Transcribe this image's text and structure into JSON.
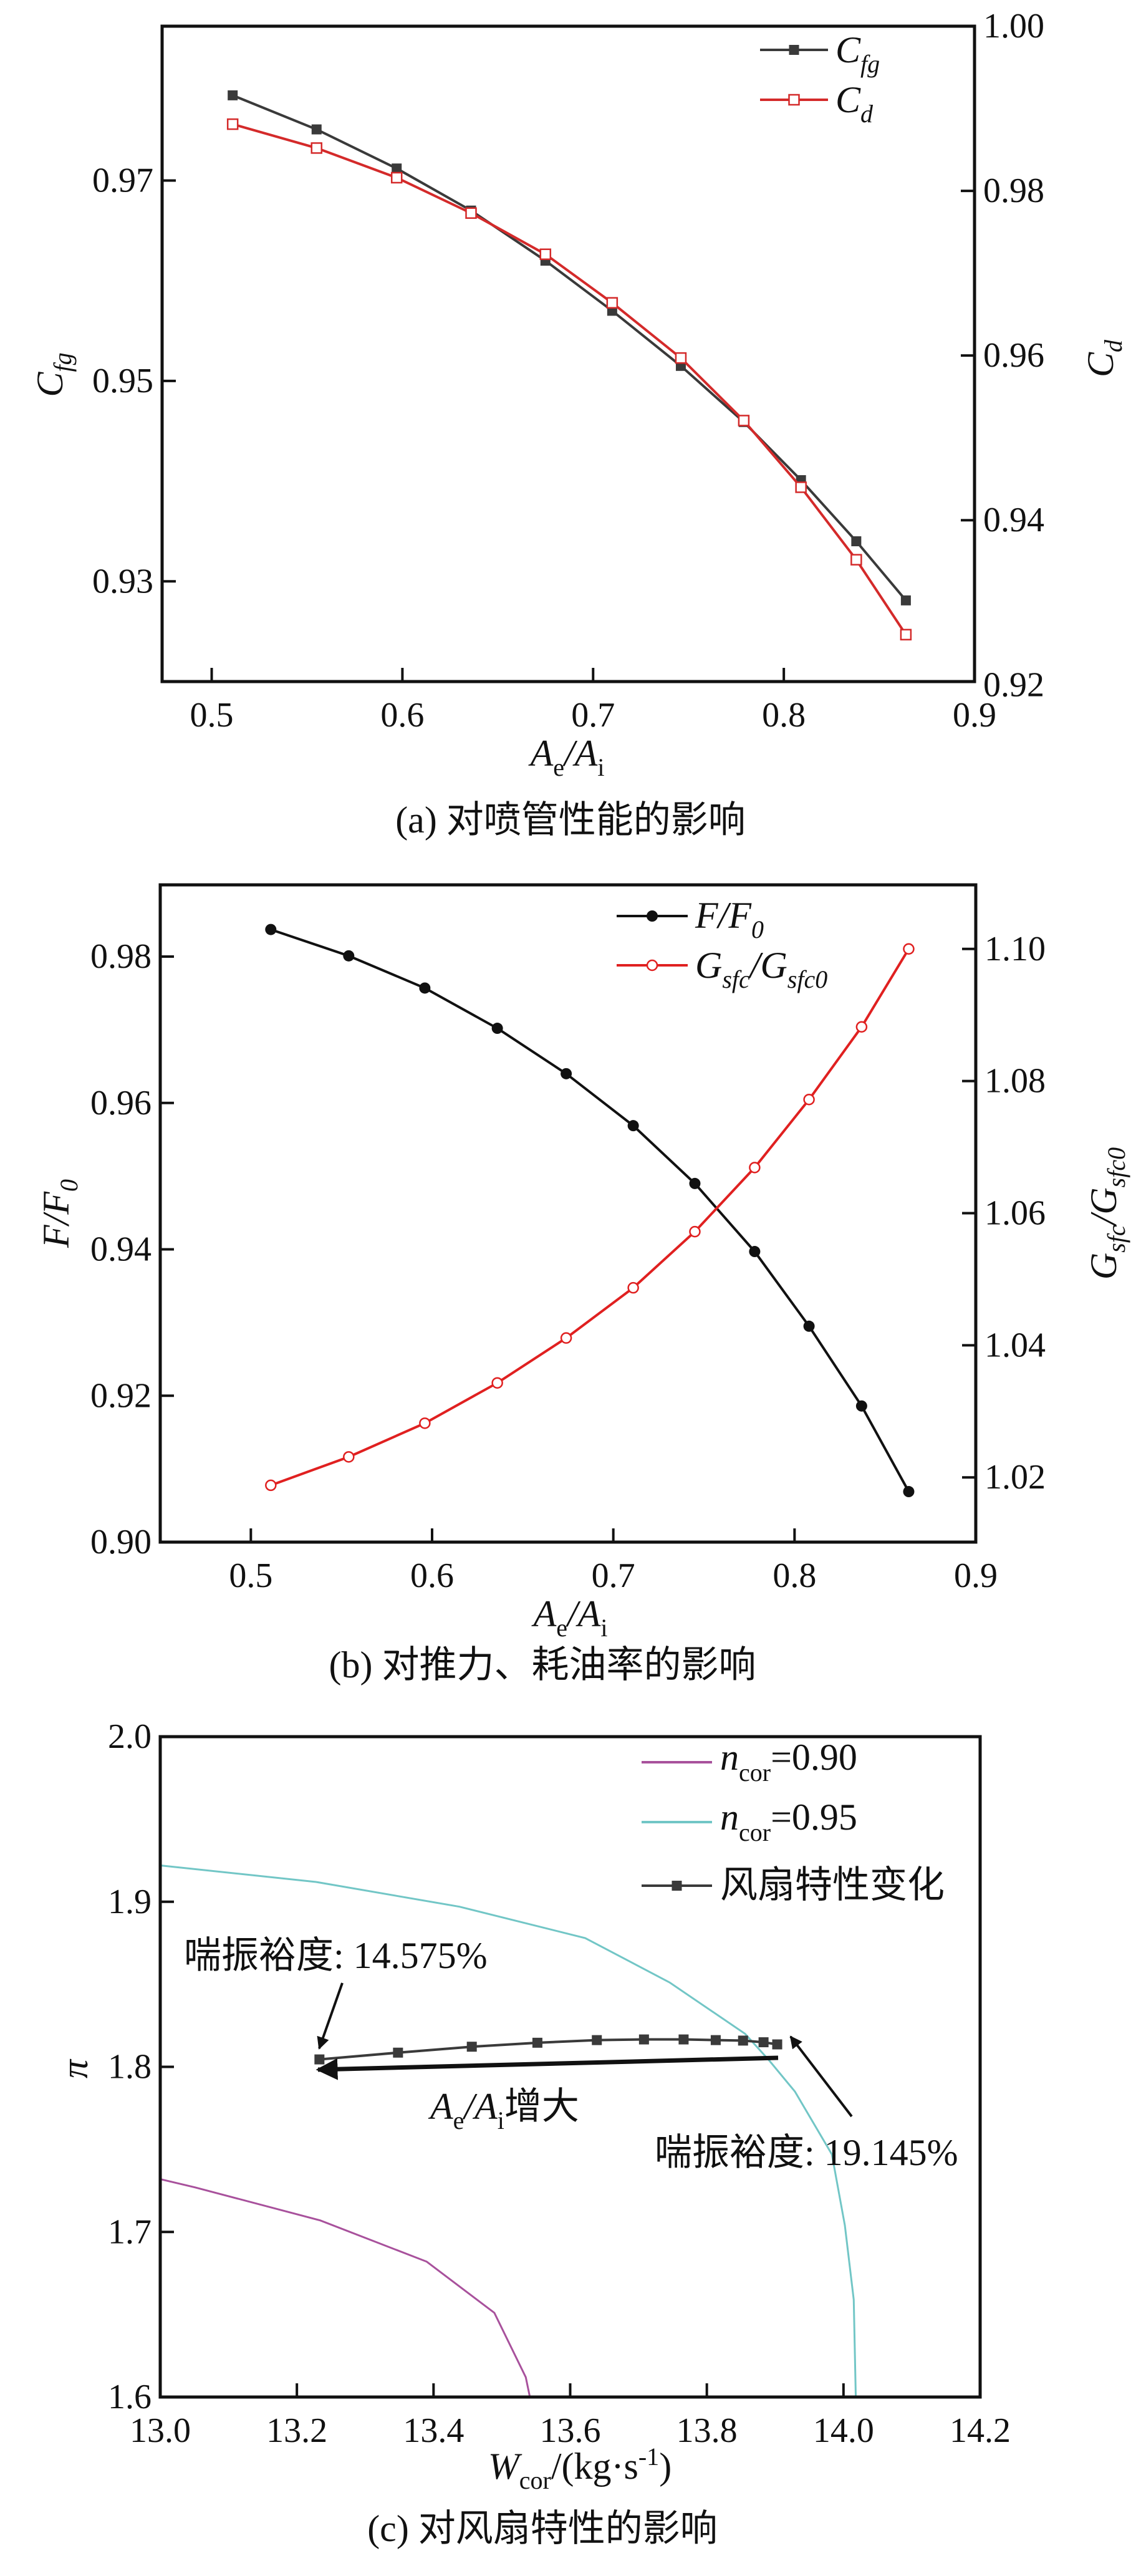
{
  "chart_data": [
    {
      "type": "line",
      "title": "(a) 对喷管性能的影响",
      "xlabel": {
        "a": "A",
        "a_sub": "e",
        "b": "/A",
        "b_sub": "i"
      },
      "ylabel_left": {
        "main": "C",
        "sub": "fg"
      },
      "ylabel_right": {
        "main": "C",
        "sub": "d"
      },
      "xlim": [
        0.474,
        0.9
      ],
      "ylim_left": [
        0.92,
        0.9854
      ],
      "ylim_right": [
        0.9204,
        1.0
      ],
      "xticks": [
        "0.5",
        "0.6",
        "0.7",
        "0.8",
        "0.9"
      ],
      "yticks_left": [
        "0.93",
        "0.95",
        "0.97"
      ],
      "yticks_right": [
        "0.92",
        "0.94",
        "0.96",
        "0.98",
        "1.00"
      ],
      "legend_position": "top-right",
      "x": [
        0.511,
        0.555,
        0.597,
        0.636,
        0.675,
        0.71,
        0.746,
        0.779,
        0.809,
        0.838,
        0.864
      ],
      "series": [
        {
          "name": "C",
          "name_sub": "fg",
          "axis": "left",
          "color": "#3a3a3a",
          "marker": "filled-square",
          "values": [
            0.9785,
            0.9751,
            0.9712,
            0.967,
            0.962,
            0.957,
            0.9515,
            0.9459,
            0.9401,
            0.934,
            0.9281
          ]
        },
        {
          "name": "C",
          "name_sub": "d",
          "axis": "right",
          "color": "#d42a2a",
          "marker": "open-square",
          "values": [
            0.9881,
            0.9852,
            0.9816,
            0.9773,
            0.9723,
            0.9664,
            0.9597,
            0.9521,
            0.944,
            0.9352,
            0.9261
          ]
        }
      ]
    },
    {
      "type": "line",
      "title": "(b) 对推力、耗油率的影响",
      "xlabel": {
        "a": "A",
        "a_sub": "e",
        "b": "/A",
        "b_sub": "i"
      },
      "ylabel_left": {
        "a": "F",
        "b": "/F",
        "b_sub": "0"
      },
      "ylabel_right": {
        "a": "G",
        "a_sub": "sfc",
        "b": "/G",
        "b_sub": "sfc0"
      },
      "xlim": [
        0.45,
        0.9
      ],
      "ylim_left": [
        0.9,
        0.9898
      ],
      "ylim_right": [
        1.0102,
        1.1097
      ],
      "xticks": [
        "0.5",
        "0.6",
        "0.7",
        "0.8",
        "0.9"
      ],
      "yticks_left": [
        "0.90",
        "0.92",
        "0.94",
        "0.96",
        "0.98"
      ],
      "yticks_right": [
        "1.02",
        "1.04",
        "1.06",
        "1.08",
        "1.10"
      ],
      "legend_position": "top-right",
      "x": [
        0.511,
        0.554,
        0.596,
        0.636,
        0.674,
        0.711,
        0.745,
        0.778,
        0.808,
        0.837,
        0.863
      ],
      "series": [
        {
          "name": "F/F",
          "name_sub": "0",
          "axis": "left",
          "color": "#111111",
          "marker": "filled-circle",
          "values": [
            0.9837,
            0.9801,
            0.9757,
            0.9702,
            0.964,
            0.9569,
            0.949,
            0.9397,
            0.9295,
            0.9186,
            0.9069
          ]
        },
        {
          "name": "G",
          "name_sub": "sfc",
          "name2": "/G",
          "name2_sub": "sfc0",
          "axis": "right",
          "color": "#e02020",
          "marker": "open-circle",
          "values": [
            1.0188,
            1.0231,
            1.0282,
            1.0343,
            1.0411,
            1.0487,
            1.0572,
            1.0669,
            1.0772,
            1.0882,
            1.1
          ]
        }
      ]
    },
    {
      "type": "line",
      "title": "(c) 对风扇特性的影响",
      "xlabel": {
        "a": "W",
        "a_sub": "cor",
        "b": "/(kg·s",
        "b_sup": "-1",
        "c": ")"
      },
      "ylabel_left": {
        "main": "π"
      },
      "xlim": [
        13.0,
        14.2
      ],
      "ylim_left": [
        1.6,
        2.0
      ],
      "xticks": [
        "13.0",
        "13.2",
        "13.4",
        "13.6",
        "13.8",
        "14.0",
        "14.2"
      ],
      "yticks_left": [
        "1.6",
        "1.7",
        "1.8",
        "1.9",
        "2.0"
      ],
      "legend_position": "top-right",
      "series": [
        {
          "name": "n",
          "name_sub": "cor",
          "name_tail": "=0.90",
          "color": "#a8519c",
          "marker": "none",
          "x": [
            13.0,
            13.051,
            13.234,
            13.39,
            13.489,
            13.535,
            13.541
          ],
          "values": [
            1.732,
            1.727,
            1.707,
            1.682,
            1.651,
            1.612,
            1.6
          ]
        },
        {
          "name": "n",
          "name_sub": "cor",
          "name_tail": "=0.95",
          "color": "#72c6c6",
          "marker": "none",
          "x": [
            13.0,
            13.228,
            13.438,
            13.622,
            13.746,
            13.856,
            13.891,
            13.929,
            13.983,
            14.002,
            14.015,
            14.018
          ],
          "values": [
            1.922,
            1.912,
            1.897,
            1.878,
            1.851,
            1.82,
            1.804,
            1.785,
            1.747,
            1.704,
            1.659,
            1.6
          ]
        },
        {
          "name": "风扇特性变化",
          "color": "#3a3a3a",
          "marker": "filled-square",
          "x": [
            13.233,
            13.348,
            13.456,
            13.552,
            13.639,
            13.708,
            13.766,
            13.813,
            13.853,
            13.883,
            13.903
          ],
          "values": [
            1.8045,
            1.8086,
            1.8122,
            1.8146,
            1.8162,
            1.8166,
            1.8166,
            1.8162,
            1.8159,
            1.8149,
            1.8136
          ]
        }
      ],
      "annotations": {
        "surge_low": "喘振裕度: 14.575%",
        "surge_high": "喘振裕度: 19.145%",
        "direction": {
          "a": "A",
          "a_sub": "e",
          "b": "/A",
          "b_sub": "i",
          "c": "增大"
        }
      }
    }
  ]
}
